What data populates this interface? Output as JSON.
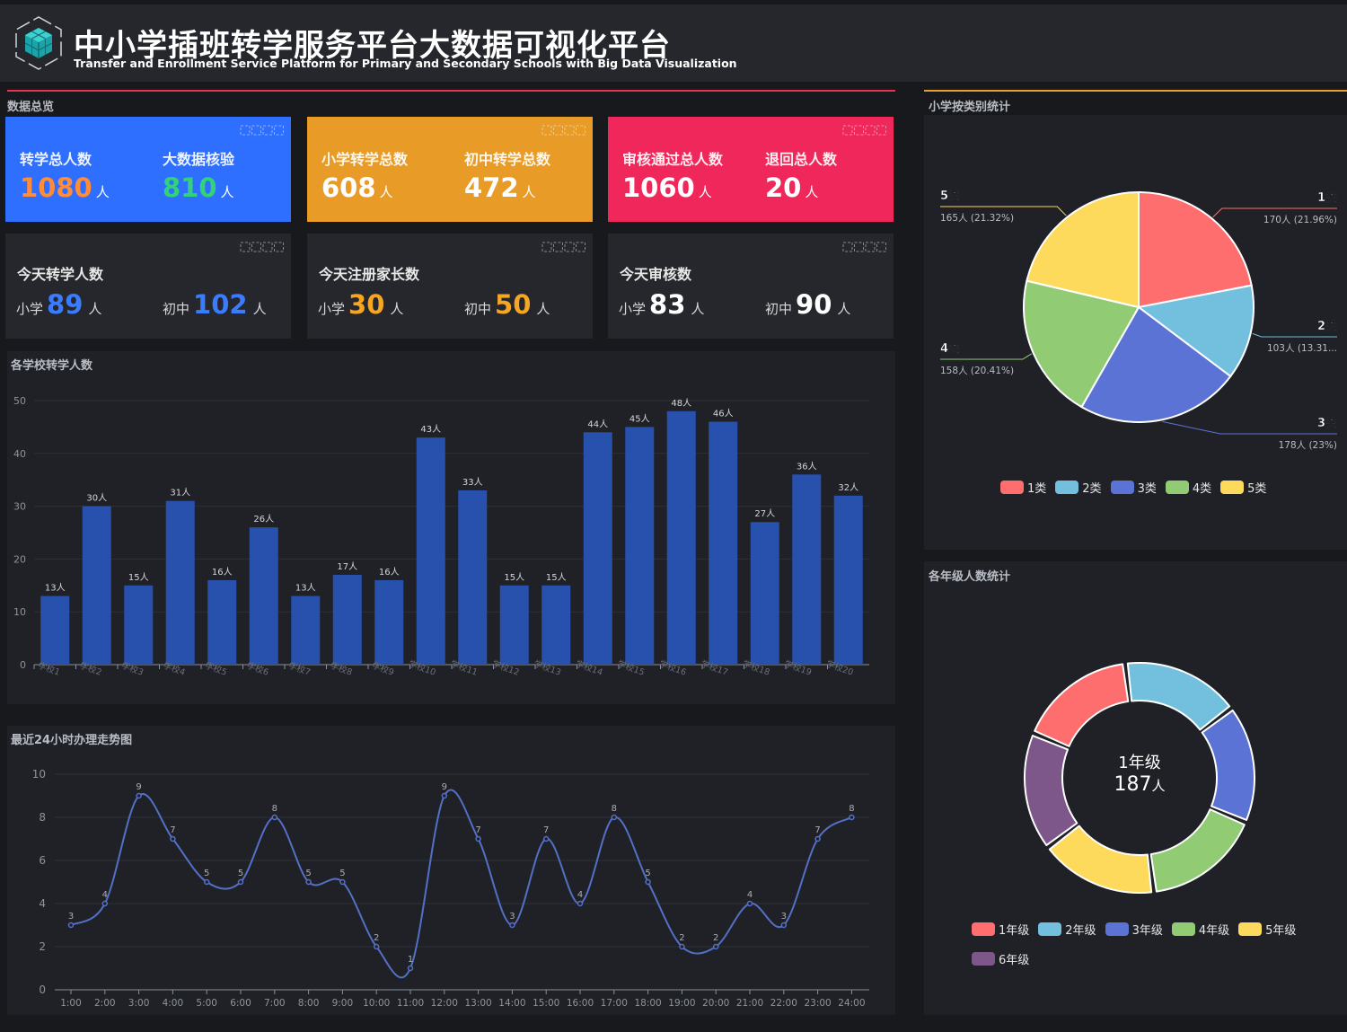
{
  "header": {
    "title": "中小学插班转学服务平台大数据可视化平台",
    "subtitle": "Transfer and Enrollment Service Platform for Primary and Secondary Schools with Big Data Visualization"
  },
  "overview": {
    "label": "数据总览",
    "unit": "人",
    "stat_cards": [
      {
        "color": "#2f6fff",
        "items": [
          {
            "label": "转学总人数",
            "value": "1080",
            "value_color": "#ff8c3a"
          },
          {
            "label": "大数据核验",
            "value": "810",
            "value_color": "#33d17a"
          }
        ]
      },
      {
        "color": "#e89b26",
        "items": [
          {
            "label": "小学转学总数",
            "value": "608",
            "value_color": "#ffffff"
          },
          {
            "label": "初中转学总数",
            "value": "472",
            "value_color": "#ffffff"
          }
        ]
      },
      {
        "color": "#f0275a",
        "items": [
          {
            "label": "审核通过总人数",
            "value": "1060",
            "value_color": "#ffffff"
          },
          {
            "label": "退回总人数",
            "value": "20",
            "value_color": "#ffffff"
          }
        ]
      }
    ],
    "daily_cards": [
      {
        "label": "今天转学人数",
        "num_color": "#3a7cff",
        "items": [
          {
            "sub": "小学",
            "value": "89"
          },
          {
            "sub": "初中",
            "value": "102"
          }
        ]
      },
      {
        "label": "今天注册家长数",
        "num_color": "#f5a623",
        "items": [
          {
            "sub": "小学",
            "value": "30"
          },
          {
            "sub": "初中",
            "value": "50"
          }
        ]
      },
      {
        "label": "今天审核数",
        "num_color": "#ffffff",
        "items": [
          {
            "sub": "小学",
            "value": "83"
          },
          {
            "sub": "初中",
            "value": "90"
          }
        ]
      }
    ]
  },
  "bar_panel": {
    "label": "各学校转学人数"
  },
  "line_panel": {
    "label": "最近24小时办理走势图"
  },
  "pie_panel": {
    "label": "小学按类别统计",
    "center_name": "",
    "legend": [
      "1类",
      "2类",
      "3类",
      "4类",
      "5类"
    ]
  },
  "donut_panel": {
    "label": "各年级人数统计",
    "center_name": "1年级",
    "center_value": "187",
    "center_unit": "人"
  },
  "chart_data": [
    {
      "type": "bar",
      "categories": [
        "学校1",
        "学校2",
        "学校3",
        "学校4",
        "学校5",
        "学校6",
        "学校7",
        "学校8",
        "学校9",
        "学校10",
        "学校11",
        "学校12",
        "学校13",
        "学校14",
        "学校15",
        "学校16",
        "学校17",
        "学校18",
        "学校19",
        "学校20"
      ],
      "values": [
        13,
        30,
        15,
        31,
        16,
        26,
        13,
        17,
        16,
        43,
        33,
        15,
        15,
        44,
        45,
        48,
        46,
        27,
        36,
        32
      ],
      "label_suffix": "人",
      "ylim": [
        0,
        50
      ],
      "yticks": [
        0,
        10,
        20,
        30,
        40,
        50
      ],
      "color": "#2850ad",
      "grid": true
    },
    {
      "type": "line",
      "x": [
        "1:00",
        "2:00",
        "3:00",
        "4:00",
        "5:00",
        "6:00",
        "7:00",
        "8:00",
        "9:00",
        "10:00",
        "11:00",
        "12:00",
        "13:00",
        "14:00",
        "15:00",
        "16:00",
        "17:00",
        "18:00",
        "19:00",
        "20:00",
        "21:00",
        "22:00",
        "23:00",
        "24:00"
      ],
      "values": [
        3,
        4,
        9,
        7,
        5,
        5,
        8,
        5,
        5,
        2,
        1,
        9,
        7,
        3,
        7,
        4,
        8,
        5,
        2,
        2,
        4,
        3,
        7,
        8
      ],
      "ylim": [
        0,
        10
      ],
      "yticks": [
        0,
        2,
        4,
        6,
        8,
        10
      ],
      "color": "#5470c6",
      "smooth": true,
      "grid": true
    },
    {
      "type": "pie",
      "categories": [
        "1类",
        "2类",
        "3类",
        "4类",
        "5类"
      ],
      "values": [
        170,
        103,
        178,
        158,
        165
      ],
      "labels": [
        "170人 (21.96%)",
        "103人 (13.31...",
        "178人 (23%)",
        "158人 (20.41%)",
        "165人 (21.32%)"
      ],
      "colors": [
        "#ff6e6e",
        "#73c0de",
        "#5b73d4",
        "#91cc75",
        "#fdd95c"
      ],
      "legend": "bottom"
    },
    {
      "type": "pie",
      "variant": "donut",
      "categories": [
        "1年级",
        "2年级",
        "3年级",
        "4年级",
        "5年级",
        "6年级"
      ],
      "values": [
        187,
        187,
        187,
        187,
        187,
        187
      ],
      "colors": [
        "#ff6e6e",
        "#73c0de",
        "#5b73d4",
        "#91cc75",
        "#fdd95c",
        "#7e578a"
      ],
      "legend": "bottom"
    }
  ]
}
